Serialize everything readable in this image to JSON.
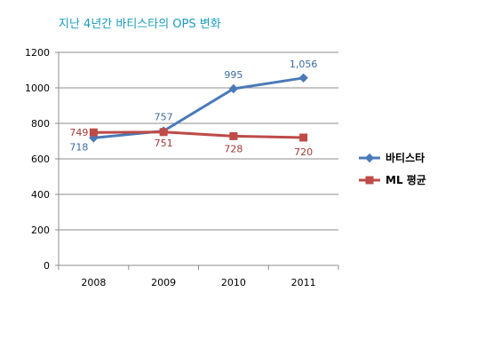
{
  "chart_data": {
    "type": "line",
    "title": "지난 4년간 바티스타의 OPS 변화",
    "categories": [
      "2008",
      "2009",
      "2010",
      "2011"
    ],
    "ylim": [
      0,
      1200
    ],
    "yticks": [
      0,
      200,
      400,
      600,
      800,
      1000,
      1200
    ],
    "grid": true,
    "legend_position": "right",
    "series": [
      {
        "name": "바티스타",
        "values": [
          718,
          757,
          995,
          1056
        ],
        "labels": [
          "718",
          "757",
          "995",
          "1,056"
        ],
        "color": "#4a7ab8",
        "label_color": "#3d6a9e",
        "marker": "diamond"
      },
      {
        "name": "ML 평균",
        "values": [
          749,
          751,
          728,
          720
        ],
        "labels": [
          "749",
          "751",
          "728",
          "720"
        ],
        "color": "#be4b48",
        "label_color": "#a03a37",
        "marker": "square"
      }
    ]
  }
}
